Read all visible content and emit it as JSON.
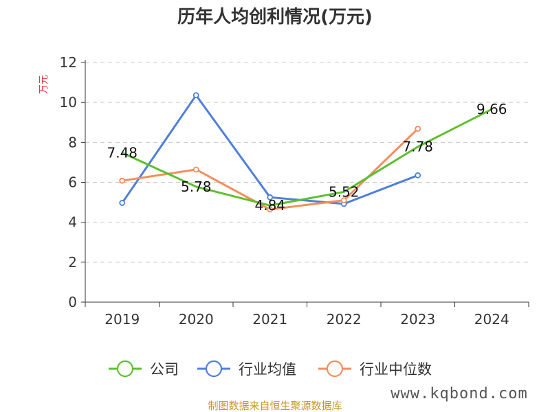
{
  "chart_data": {
    "type": "line",
    "title": "历年人均创利情况(万元)",
    "ylabel": "万元",
    "categories": [
      "2019",
      "2020",
      "2021",
      "2022",
      "2023",
      "2024"
    ],
    "ylim": [
      0,
      12
    ],
    "yticks": [
      0,
      2,
      4,
      6,
      8,
      10,
      12
    ],
    "grid": true,
    "legend_position": "bottom",
    "series": [
      {
        "name": "公司",
        "color": "#5cc02c",
        "values": [
          7.48,
          5.78,
          4.84,
          5.52,
          7.78,
          9.66
        ],
        "labels": [
          "7.48",
          "5.78",
          "4.84",
          "5.52",
          "7.78",
          "9.66"
        ]
      },
      {
        "name": "行业均值",
        "color": "#4e7fdb",
        "values": [
          4.97,
          10.36,
          5.25,
          4.92,
          6.35,
          null
        ]
      },
      {
        "name": "行业中位数",
        "color": "#f48d5c",
        "values": [
          6.08,
          6.64,
          4.64,
          5.1,
          8.68,
          null
        ]
      }
    ]
  },
  "footer": {
    "source": "制图数据来自恒生聚源数据库",
    "watermark": "www.kqbond.com"
  }
}
